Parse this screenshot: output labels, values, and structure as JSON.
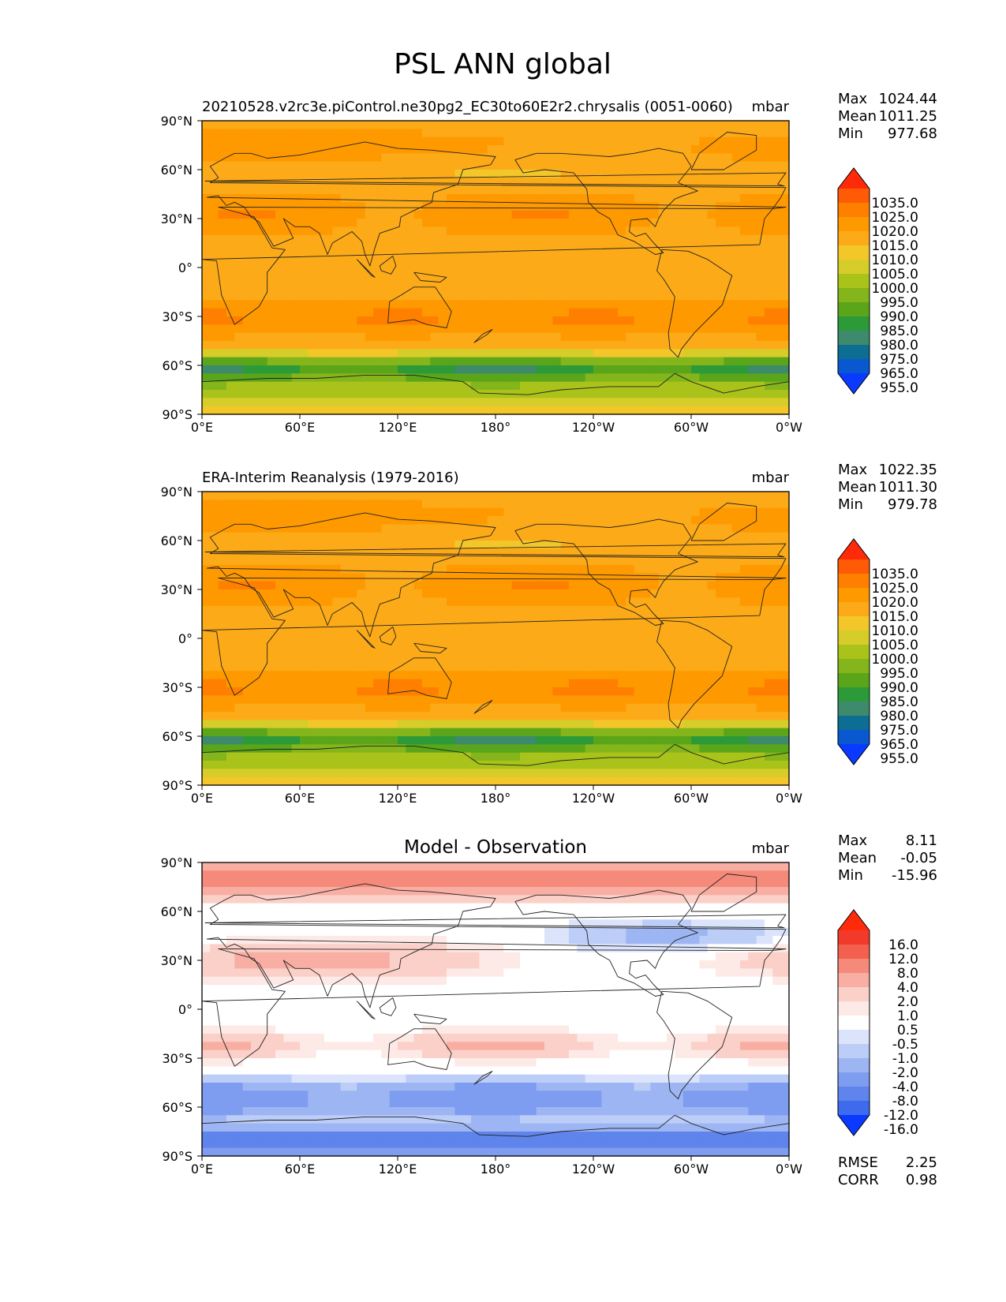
{
  "figure_title": "PSL ANN global",
  "chart_data": [
    {
      "type": "heatmap",
      "subtitle_left": "20210528.v2rc3e.piControl.ne30pg2_EC30to60E2r2.chrysalis (0051-0060)",
      "units": "mbar",
      "x_ticks": [
        "0°E",
        "60°E",
        "120°E",
        "180°",
        "120°W",
        "60°W",
        "0°W"
      ],
      "y_ticks": [
        "90°N",
        "60°N",
        "30°N",
        "0°",
        "30°S",
        "60°S",
        "90°S"
      ],
      "stats": [
        {
          "label": "Max",
          "value": "1024.44"
        },
        {
          "label": "Mean",
          "value": "1011.25"
        },
        {
          "label": "Min",
          "value": "977.68"
        }
      ],
      "colorbar": {
        "labels": [
          "1035.0",
          "1025.0",
          "1020.0",
          "1015.0",
          "1010.0",
          "1005.0",
          "1000.0",
          "995.0",
          "990.0",
          "985.0",
          "980.0",
          "975.0",
          "965.0",
          "955.0"
        ],
        "colors": [
          "#ff2a0a",
          "#ff5a05",
          "#ff7f00",
          "#ff9900",
          "#fcaa17",
          "#f3c62a",
          "#d6cd2a",
          "#aac31a",
          "#84b51a",
          "#5aa519",
          "#2d9a3a",
          "#3d8a6c",
          "#0d6e94",
          "#0a58d0",
          "#0a3aff"
        ],
        "extend": "both"
      }
    },
    {
      "type": "heatmap",
      "subtitle_left": "ERA-Interim Reanalysis (1979-2016)",
      "units": "mbar",
      "x_ticks": [
        "0°E",
        "60°E",
        "120°E",
        "180°",
        "120°W",
        "60°W",
        "0°W"
      ],
      "y_ticks": [
        "90°N",
        "60°N",
        "30°N",
        "0°",
        "30°S",
        "60°S",
        "90°S"
      ],
      "stats": [
        {
          "label": "Max",
          "value": "1022.35"
        },
        {
          "label": "Mean",
          "value": "1011.30"
        },
        {
          "label": "Min",
          "value": "979.78"
        }
      ],
      "colorbar": {
        "labels": [
          "1035.0",
          "1025.0",
          "1020.0",
          "1015.0",
          "1010.0",
          "1005.0",
          "1000.0",
          "995.0",
          "990.0",
          "985.0",
          "980.0",
          "975.0",
          "965.0",
          "955.0"
        ],
        "colors": [
          "#ff2a0a",
          "#ff5a05",
          "#ff7f00",
          "#ff9900",
          "#fcaa17",
          "#f3c62a",
          "#d6cd2a",
          "#aac31a",
          "#84b51a",
          "#5aa519",
          "#2d9a3a",
          "#3d8a6c",
          "#0d6e94",
          "#0a58d0",
          "#0a3aff"
        ],
        "extend": "both"
      }
    },
    {
      "type": "heatmap",
      "subtitle_center": "Model - Observation",
      "units": "mbar",
      "x_ticks": [
        "0°E",
        "60°E",
        "120°E",
        "180°",
        "120°W",
        "60°W",
        "0°W"
      ],
      "y_ticks": [
        "90°N",
        "60°N",
        "30°N",
        "0°",
        "30°S",
        "60°S",
        "90°S"
      ],
      "stats": [
        {
          "label": "Max",
          "value": "8.11"
        },
        {
          "label": "Mean",
          "value": "-0.05"
        },
        {
          "label": "Min",
          "value": "-15.96"
        }
      ],
      "metrics": [
        {
          "label": "RMSE",
          "value": "2.25"
        },
        {
          "label": "CORR",
          "value": "0.98"
        }
      ],
      "colorbar": {
        "labels": [
          "16.0",
          "12.0",
          "8.0",
          "4.0",
          "2.0",
          "1.0",
          "0.5",
          "-0.5",
          "-1.0",
          "-2.0",
          "-4.0",
          "-8.0",
          "-12.0",
          "-16.0"
        ],
        "colors": [
          "#ff2a0a",
          "#f23a2a",
          "#f4604e",
          "#f58a7a",
          "#f8aea2",
          "#fbd0c8",
          "#fde9e5",
          "#ffffff",
          "#dbe4fb",
          "#bccdf7",
          "#9db5f3",
          "#7e9df0",
          "#5f85ec",
          "#3e6bee",
          "#0a3aff"
        ],
        "extend": "both"
      }
    }
  ]
}
